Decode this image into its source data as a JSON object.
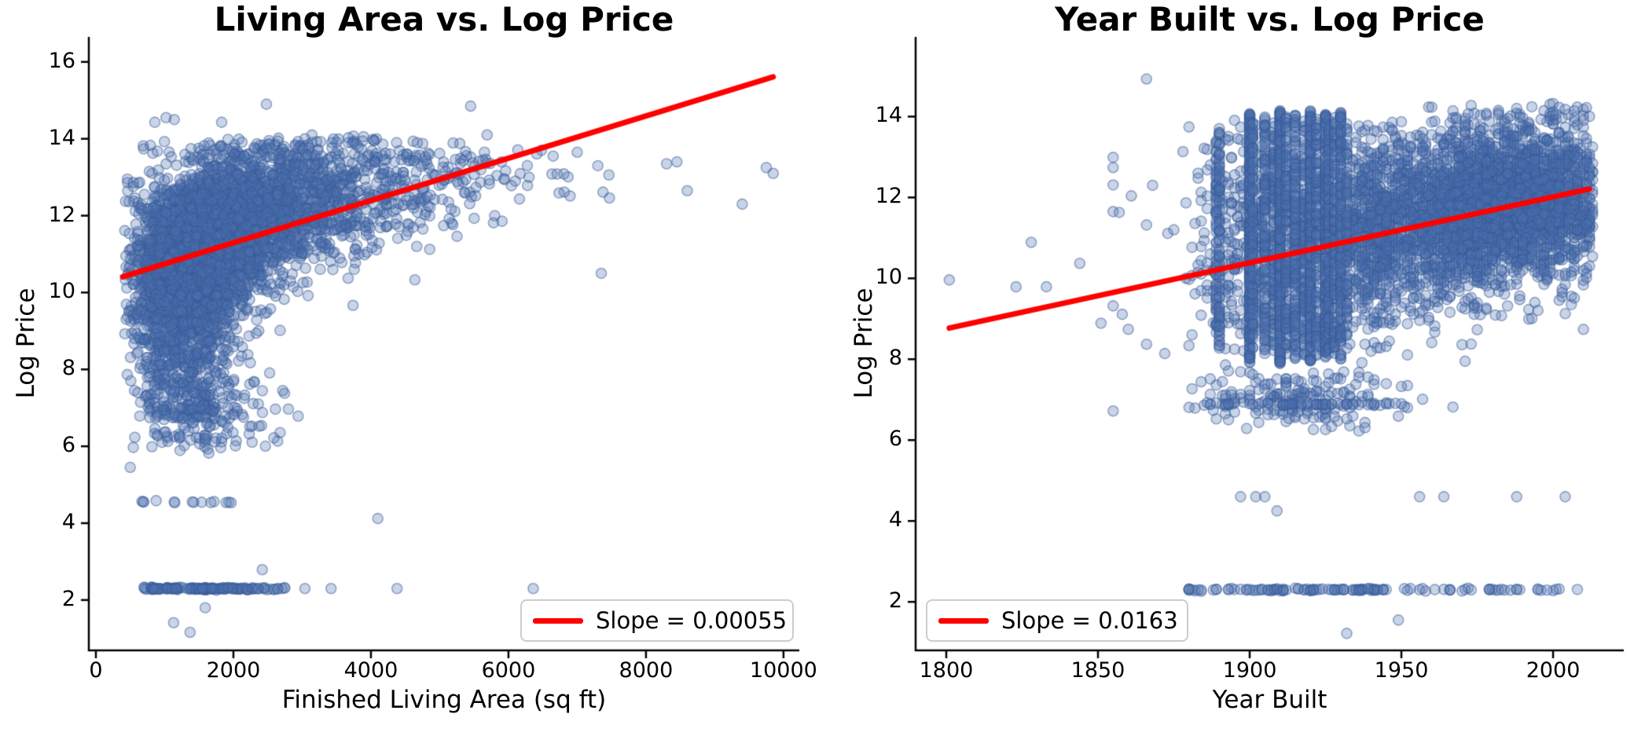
{
  "page": {
    "background": "#ffffff"
  },
  "colors": {
    "marker_fill": "#4C72B0",
    "trendline": "#FF0000",
    "axis": "#000000",
    "legend_border": "#cccccc"
  },
  "chart_data": [
    {
      "type": "scatter",
      "title": "Living Area vs. Log Price",
      "xlabel": "Finished Living Area (sq ft)",
      "ylabel": "Log Price",
      "legend_label": "Slope = 0.00055",
      "legend_position": "lower right",
      "slope": 0.00055,
      "grid": false,
      "xlim": [
        -103,
        10230
      ],
      "ylim": [
        0.69,
        16.65
      ],
      "x_ticks": {
        "values": [
          0,
          2000,
          4000,
          6000,
          8000,
          10000
        ],
        "labels": [
          "0",
          "2000",
          "4000",
          "6000",
          "8000",
          "10000"
        ]
      },
      "y_ticks": {
        "values": [
          2,
          4,
          6,
          8,
          10,
          12,
          14,
          16
        ],
        "labels": [
          "2",
          "4",
          "6",
          "8",
          "10",
          "12",
          "14",
          "16"
        ]
      },
      "marker": {
        "color": "#4C72B0",
        "alpha": 0.3,
        "radius": 6.5,
        "edge_alpha": 0.5
      },
      "trendline": {
        "color": "#FF0000",
        "width": 7,
        "x0": 390,
        "y0": 10.41,
        "x1": 9850,
        "y1": 15.61
      },
      "seed": 42,
      "point_clusters": [
        {
          "kind": "gauss",
          "n": 1500,
          "cx": 1250,
          "sx": 380,
          "cy": 10.4,
          "sy": 0.95,
          "clipx": [
            420,
            10050
          ],
          "clipy": [
            5.8,
            14.2
          ]
        },
        {
          "kind": "gauss",
          "n": 1500,
          "cx": 1650,
          "sx": 480,
          "cy": 11.4,
          "sy": 0.85,
          "clipx": [
            420,
            10050
          ],
          "clipy": [
            6.5,
            14.0
          ]
        },
        {
          "kind": "gauss",
          "n": 900,
          "cx": 2300,
          "sx": 600,
          "cy": 12.0,
          "sy": 0.8,
          "clipx": [
            500,
            10050
          ],
          "clipy": [
            7.5,
            14.0
          ]
        },
        {
          "kind": "gauss",
          "n": 450,
          "cx": 3200,
          "sx": 700,
          "cy": 12.5,
          "sy": 0.75,
          "clipx": [
            900,
            10050
          ],
          "clipy": [
            8.5,
            14.1
          ]
        },
        {
          "kind": "gauss",
          "n": 160,
          "cx": 4400,
          "sx": 800,
          "cy": 12.9,
          "sy": 0.7,
          "clipx": [
            1500,
            10050
          ],
          "clipy": [
            9.5,
            14.1
          ]
        },
        {
          "kind": "gauss",
          "n": 50,
          "cx": 5600,
          "sx": 900,
          "cy": 13.1,
          "sy": 0.6,
          "clipx": [
            3500,
            10050
          ],
          "clipy": [
            10.5,
            14.0
          ]
        },
        {
          "kind": "gauss",
          "n": 350,
          "cx": 1300,
          "sx": 420,
          "cy": 8.6,
          "sy": 0.9,
          "clipx": [
            420,
            6000
          ],
          "clipy": [
            6.0,
            11.0
          ]
        },
        {
          "kind": "gauss",
          "n": 120,
          "cx": 1400,
          "sx": 500,
          "cy": 6.92,
          "sy": 0.22,
          "clipx": [
            500,
            4000
          ],
          "clipy": [
            6.1,
            7.4
          ]
        },
        {
          "kind": "gauss",
          "n": 60,
          "cx": 1500,
          "sx": 550,
          "cy": 7.55,
          "sy": 0.18,
          "clipx": [
            500,
            4000
          ],
          "clipy": [
            7.1,
            8.0
          ]
        },
        {
          "kind": "gauss",
          "n": 40,
          "cx": 1200,
          "sx": 350,
          "cy": 6.2,
          "sy": 0.15,
          "clipx": [
            500,
            3000
          ],
          "clipy": [
            5.8,
            6.6
          ]
        },
        {
          "kind": "gauss",
          "n": 110,
          "cx": 2600,
          "sx": 1300,
          "cy": 13.55,
          "sy": 0.25,
          "clipx": [
            600,
            5600
          ],
          "clipy": [
            13.25,
            14.1
          ]
        },
        {
          "kind": "gauss",
          "n": 18,
          "cx": 2300,
          "sx": 500,
          "cy": 6.3,
          "sy": 0.35,
          "clipx": [
            1200,
            3600
          ],
          "clipy": [
            5.5,
            7.0
          ]
        },
        {
          "kind": "hstripe",
          "n": 120,
          "y": 2.3,
          "x0": 690,
          "x1": 2110,
          "ysd": 0.015
        },
        {
          "kind": "hstripe",
          "n": 26,
          "y": 2.3,
          "x0": 2110,
          "x1": 2750,
          "ysd": 0.015
        },
        {
          "kind": "hstripe",
          "n": 14,
          "y": 4.55,
          "x0": 560,
          "x1": 2050,
          "ysd": 0.02
        }
      ],
      "outlier_points": [
        [
          1020,
          14.55
        ],
        [
          1140,
          14.5
        ],
        [
          857,
          14.43
        ],
        [
          1829,
          14.43
        ],
        [
          2480,
          14.9
        ],
        [
          5450,
          14.85
        ],
        [
          4080,
          14.0
        ],
        [
          5690,
          14.1
        ],
        [
          6480,
          13.7
        ],
        [
          6650,
          13.55
        ],
        [
          7000,
          13.65
        ],
        [
          7300,
          13.3
        ],
        [
          7350,
          10.5
        ],
        [
          8300,
          13.35
        ],
        [
          8450,
          13.4
        ],
        [
          8600,
          12.65
        ],
        [
          9400,
          12.3
        ],
        [
          9750,
          13.25
        ],
        [
          9850,
          13.1
        ],
        [
          6360,
          2.3
        ],
        [
          4380,
          2.3
        ],
        [
          3420,
          2.3
        ],
        [
          3040,
          2.3
        ],
        [
          4100,
          4.12
        ],
        [
          2420,
          2.79
        ],
        [
          1590,
          1.8
        ],
        [
          1130,
          1.41
        ],
        [
          1370,
          1.16
        ],
        [
          500,
          5.45
        ],
        [
          5800,
          12.0
        ],
        [
          6100,
          12.9
        ],
        [
          5900,
          13.4
        ],
        [
          6300,
          13.0
        ]
      ]
    },
    {
      "type": "scatter",
      "title": "Year Built vs. Log Price",
      "xlabel": "Year Built",
      "ylabel": "Log Price",
      "legend_label": "Slope = 0.0163",
      "legend_position": "lower left",
      "slope": 0.0163,
      "grid": false,
      "xlim": [
        1789.9,
        2023.3
      ],
      "ylim": [
        0.8,
        15.97
      ],
      "x_ticks": {
        "values": [
          1800,
          1850,
          1900,
          1950,
          2000
        ],
        "labels": [
          "1800",
          "1850",
          "1900",
          "1950",
          "2000"
        ]
      },
      "y_ticks": {
        "values": [
          2,
          4,
          6,
          8,
          10,
          12,
          14
        ],
        "labels": [
          "2",
          "4",
          "6",
          "8",
          "10",
          "12",
          "14"
        ]
      },
      "marker": {
        "color": "#4C72B0",
        "alpha": 0.3,
        "radius": 6.5,
        "edge_alpha": 0.5
      },
      "trendline": {
        "color": "#FF0000",
        "width": 7,
        "x0": 1801,
        "y0": 8.77,
        "x1": 2012,
        "y1": 12.21
      },
      "seed": 7,
      "point_clusters": [
        {
          "kind": "gauss",
          "n": 2200,
          "cx": 1990,
          "sx": 18,
          "cy": 12.0,
          "sy": 0.95,
          "xq": 1,
          "clipx": [
            1933,
            2013
          ],
          "clipy": [
            8.0,
            14.35
          ]
        },
        {
          "kind": "gauss",
          "n": 900,
          "cx": 1962,
          "sx": 14,
          "cy": 11.3,
          "sy": 1.05,
          "xq": 1,
          "clipx": [
            1933,
            2013
          ],
          "clipy": [
            7.4,
            14.2
          ]
        },
        {
          "kind": "gauss",
          "n": 700,
          "cx": 1910,
          "sx": 15,
          "cy": 10.9,
          "sy": 1.35,
          "xq": 1,
          "clipx": [
            1878,
            1944
          ],
          "clipy": [
            7.2,
            14.15
          ]
        },
        {
          "kind": "gauss",
          "n": 450,
          "cx": 1941,
          "sx": 6,
          "cy": 11.2,
          "sy": 1.2,
          "xq": 1,
          "clipx": [
            1931,
            1953
          ],
          "clipy": [
            8.0,
            13.9
          ]
        },
        {
          "kind": "vcol",
          "x": 1889,
          "n": 60,
          "y0": 8.4,
          "y1": 13.6
        },
        {
          "kind": "vcol",
          "x": 1890,
          "n": 70,
          "y0": 8.2,
          "y1": 13.8
        },
        {
          "kind": "vcol",
          "x": 1900,
          "n": 270,
          "y0": 7.9,
          "y1": 14.15
        },
        {
          "kind": "vcol",
          "x": 1901,
          "n": 80,
          "y0": 8.2,
          "y1": 13.9
        },
        {
          "kind": "vcol",
          "x": 1905,
          "n": 100,
          "y0": 8.1,
          "y1": 14.0
        },
        {
          "kind": "vcol",
          "x": 1908,
          "n": 80,
          "y0": 8.2,
          "y1": 13.9
        },
        {
          "kind": "vcol",
          "x": 1910,
          "n": 260,
          "y0": 7.9,
          "y1": 14.15
        },
        {
          "kind": "vcol",
          "x": 1912,
          "n": 90,
          "y0": 8.1,
          "y1": 14.0
        },
        {
          "kind": "vcol",
          "x": 1915,
          "n": 120,
          "y0": 8.0,
          "y1": 14.05
        },
        {
          "kind": "vcol",
          "x": 1918,
          "n": 90,
          "y0": 8.1,
          "y1": 13.95
        },
        {
          "kind": "vcol",
          "x": 1920,
          "n": 250,
          "y0": 7.9,
          "y1": 14.15
        },
        {
          "kind": "vcol",
          "x": 1922,
          "n": 90,
          "y0": 8.1,
          "y1": 14.0
        },
        {
          "kind": "vcol",
          "x": 1925,
          "n": 160,
          "y0": 8.0,
          "y1": 14.1
        },
        {
          "kind": "vcol",
          "x": 1926,
          "n": 110,
          "y0": 8.1,
          "y1": 14.0
        },
        {
          "kind": "vcol",
          "x": 1928,
          "n": 110,
          "y0": 8.1,
          "y1": 14.05
        },
        {
          "kind": "vcol",
          "x": 1930,
          "n": 150,
          "y0": 8.0,
          "y1": 14.1
        },
        {
          "kind": "vcol",
          "x": 1932,
          "n": 60,
          "y0": 8.2,
          "y1": 13.9
        },
        {
          "kind": "gauss",
          "n": 180,
          "cx": 1915,
          "sx": 18,
          "cy": 7.0,
          "sy": 0.33,
          "xq": 1,
          "clipx": [
            1880,
            1975
          ],
          "clipy": [
            6.15,
            7.7
          ]
        },
        {
          "kind": "hstripe",
          "n": 50,
          "y": 6.9,
          "x0": 1885,
          "x1": 1950,
          "ysd": 0.02,
          "xq": 1
        },
        {
          "kind": "hstripe",
          "n": 70,
          "y": 2.3,
          "x0": 1878,
          "x1": 2012,
          "ysd": 0.015,
          "xq": 1
        },
        {
          "kind": "hstripe",
          "n": 55,
          "y": 2.3,
          "x0": 1896,
          "x1": 1944,
          "ysd": 0.015,
          "xq": 1
        }
      ],
      "outlier_points": [
        [
          1866,
          14.93
        ],
        [
          1855,
          12.99
        ],
        [
          1855,
          12.74
        ],
        [
          1855,
          12.31
        ],
        [
          1861,
          12.04
        ],
        [
          1855,
          11.65
        ],
        [
          1857,
          11.63
        ],
        [
          1866,
          11.32
        ],
        [
          1873,
          11.11
        ],
        [
          1828,
          10.89
        ],
        [
          1844,
          10.37
        ],
        [
          1801,
          9.96
        ],
        [
          1823,
          9.79
        ],
        [
          1833,
          9.79
        ],
        [
          1855,
          9.32
        ],
        [
          1858,
          9.11
        ],
        [
          1851,
          8.89
        ],
        [
          1860,
          8.74
        ],
        [
          1866,
          8.37
        ],
        [
          1872,
          8.14
        ],
        [
          1855,
          6.72
        ],
        [
          1897,
          4.6
        ],
        [
          1902,
          4.6
        ],
        [
          1905,
          4.6
        ],
        [
          1909,
          4.25
        ],
        [
          1956,
          4.6
        ],
        [
          1964,
          4.6
        ],
        [
          1988,
          4.6
        ],
        [
          2004,
          4.6
        ],
        [
          1932,
          1.22
        ],
        [
          1949,
          1.55
        ],
        [
          1875,
          11.2
        ],
        [
          1868,
          12.3
        ]
      ]
    }
  ]
}
